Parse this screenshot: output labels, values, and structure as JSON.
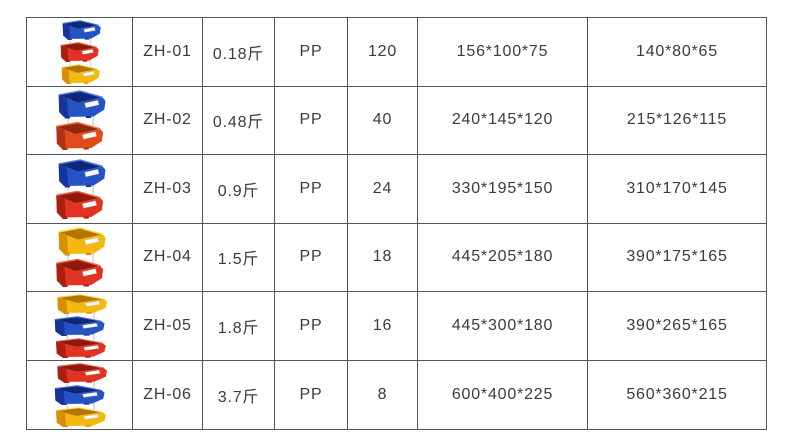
{
  "page": {
    "background": "#ffffff",
    "grid_color": "#555555",
    "text_color": "#3b3b3b"
  },
  "table": {
    "rows": [
      {
        "model": "ZH-01",
        "weight": "0.18斤",
        "material": "PP",
        "qty": "120",
        "outer_size": "156*100*75",
        "inner_size": "140*80*65",
        "bins": [
          "blue",
          "red",
          "yellow"
        ]
      },
      {
        "model": "ZH-02",
        "weight": "0.48斤",
        "material": "PP",
        "qty": "40",
        "outer_size": "240*145*120",
        "inner_size": "215*126*115",
        "bins": [
          "blue",
          "orange_red"
        ]
      },
      {
        "model": "ZH-03",
        "weight": "0.9斤",
        "material": "PP",
        "qty": "24",
        "outer_size": "330*195*150",
        "inner_size": "310*170*145",
        "bins": [
          "blue",
          "red"
        ]
      },
      {
        "model": "ZH-04",
        "weight": "1.5斤",
        "material": "PP",
        "qty": "18",
        "outer_size": "445*205*180",
        "inner_size": "390*175*165",
        "bins": [
          "yellow",
          "red"
        ]
      },
      {
        "model": "ZH-05",
        "weight": "1.8斤",
        "material": "PP",
        "qty": "16",
        "outer_size": "445*300*180",
        "inner_size": "390*265*165",
        "bins": [
          "yellow",
          "blue",
          "red"
        ]
      },
      {
        "model": "ZH-06",
        "weight": "3.7斤",
        "material": "PP",
        "qty": "8",
        "outer_size": "600*400*225",
        "inner_size": "560*360*215",
        "bins": [
          "red",
          "blue",
          "yellow"
        ]
      }
    ]
  },
  "colors": {
    "bins": {
      "blue": {
        "main": "#2453c6",
        "dark": "#17339c",
        "inner": "#102679",
        "light": "#4f7de0"
      },
      "red": {
        "main": "#e03322",
        "dark": "#a81f10",
        "inner": "#8f1a0c",
        "light": "#f05a45"
      },
      "orange_red": {
        "main": "#e04b1e",
        "dark": "#b03311",
        "inner": "#92280c",
        "light": "#f2744a"
      },
      "yellow": {
        "main": "#f5b80c",
        "dark": "#d68f00",
        "inner": "#b37500",
        "light": "#ffd34d"
      }
    },
    "label_slot": "#f8f8f8",
    "stack_post": "#dcdcdc"
  },
  "chart_data": {
    "type": "table",
    "rows": [
      [
        "ZH-01",
        "0.18斤",
        "PP",
        "120",
        "156*100*75",
        "140*80*65"
      ],
      [
        "ZH-02",
        "0.48斤",
        "PP",
        "40",
        "240*145*120",
        "215*126*115"
      ],
      [
        "ZH-03",
        "0.9斤",
        "PP",
        "24",
        "330*195*150",
        "310*170*145"
      ],
      [
        "ZH-04",
        "1.5斤",
        "PP",
        "18",
        "445*205*180",
        "390*175*165"
      ],
      [
        "ZH-05",
        "1.8斤",
        "PP",
        "16",
        "445*300*180",
        "390*265*165"
      ],
      [
        "ZH-06",
        "3.7斤",
        "PP",
        "8",
        "600*400*225",
        "560*360*215"
      ]
    ]
  }
}
